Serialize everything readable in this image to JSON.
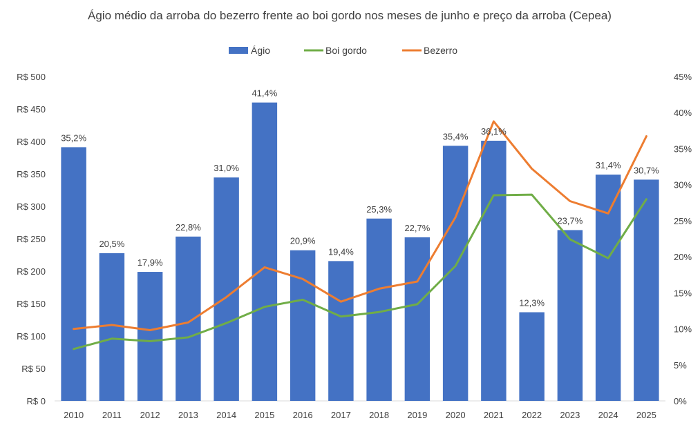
{
  "chart_data": {
    "type": "bar",
    "title": "Ágio médio da arroba do bezerro frente ao boi gordo nos meses de junho e preço da arroba (Cepea)",
    "categories": [
      "2010",
      "2011",
      "2012",
      "2013",
      "2014",
      "2015",
      "2016",
      "2017",
      "2018",
      "2019",
      "2020",
      "2021",
      "2022",
      "2023",
      "2024",
      "2025"
    ],
    "legend": {
      "placement": "top-center",
      "entries": [
        "Ágio",
        "Boi gordo",
        "Bezerro"
      ]
    },
    "y_left": {
      "ticks": [
        "R$ 0",
        "R$ 50",
        "R$ 100",
        "R$ 150",
        "R$ 200",
        "R$ 250",
        "R$ 300",
        "R$ 350",
        "R$ 400",
        "R$ 450",
        "R$ 500"
      ],
      "ylim": [
        0,
        500
      ]
    },
    "y_right": {
      "ticks": [
        "0%",
        "5%",
        "10%",
        "15%",
        "20%",
        "25%",
        "30%",
        "35%",
        "40%",
        "45%"
      ],
      "ylim": [
        0,
        45
      ]
    },
    "series": [
      {
        "name": "Ágio",
        "kind": "bar",
        "axis": "right",
        "color": "#4472C4",
        "values": [
          35.2,
          20.5,
          17.9,
          22.8,
          31.0,
          41.4,
          20.9,
          19.4,
          25.3,
          22.7,
          35.4,
          36.1,
          12.3,
          23.7,
          31.4,
          30.7
        ],
        "labels": [
          "35,2%",
          "20,5%",
          "17,9%",
          "22,8%",
          "31,0%",
          "41,4%",
          "20,9%",
          "19,4%",
          "25,3%",
          "22,7%",
          "35,4%",
          "36,1%",
          "12,3%",
          "23,7%",
          "31,4%",
          "30,7%"
        ]
      },
      {
        "name": "Boi gordo",
        "kind": "line",
        "axis": "left",
        "color": "#70AD47",
        "values": [
          80,
          96,
          92,
          98,
          120,
          145,
          156,
          130,
          137,
          149,
          208,
          317,
          318,
          249,
          220,
          311
        ]
      },
      {
        "name": "Bezerro",
        "kind": "line",
        "axis": "left",
        "color": "#ED7D31",
        "values": [
          111,
          117,
          109,
          121,
          160,
          206,
          188,
          153,
          173,
          184,
          283,
          431,
          358,
          308,
          289,
          408
        ]
      }
    ]
  }
}
